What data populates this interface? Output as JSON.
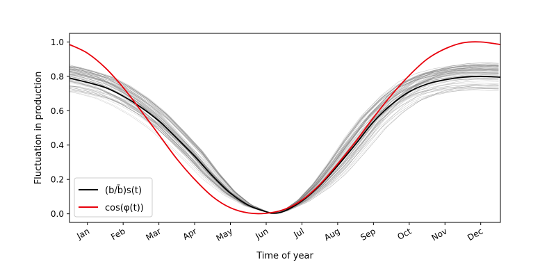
{
  "chart_data": {
    "type": "line",
    "xlabel": "Time of year",
    "ylabel": "Fluctuation in production",
    "x_tick_labels": [
      "Jan",
      "Feb",
      "Mar",
      "Apr",
      "May",
      "Jun",
      "Jul",
      "Aug",
      "Sep",
      "Oct",
      "Nov",
      "Dec"
    ],
    "x_tick_positions": [
      1,
      2,
      3,
      4,
      5,
      6,
      7,
      8,
      9,
      10,
      11,
      12
    ],
    "xlim": [
      0.5,
      12.55
    ],
    "ylim": [
      -0.05,
      1.05
    ],
    "y_ticks": [
      0.0,
      0.2,
      0.4,
      0.6,
      0.8,
      1.0
    ],
    "y_tick_labels": [
      "0.0",
      "0.2",
      "0.4",
      "0.6",
      "0.8",
      "1.0"
    ],
    "grid": false,
    "legend_position": "lower-left",
    "ensemble": {
      "count": 60,
      "color": "#808080",
      "description_min_month": 6.2
    },
    "series": [
      {
        "name": "(b/b̄)s(t)",
        "color": "#000000",
        "x": [
          0.5,
          1,
          1.5,
          2,
          2.5,
          3,
          3.5,
          4,
          4.5,
          5,
          5.5,
          6,
          6.2,
          6.5,
          7,
          7.5,
          8,
          8.5,
          9,
          9.5,
          10,
          10.5,
          11,
          11.5,
          12,
          12.55
        ],
        "y": [
          0.79,
          0.765,
          0.735,
          0.685,
          0.62,
          0.54,
          0.44,
          0.335,
          0.22,
          0.12,
          0.05,
          0.012,
          0.003,
          0.015,
          0.075,
          0.165,
          0.28,
          0.405,
          0.535,
          0.635,
          0.71,
          0.755,
          0.78,
          0.795,
          0.8,
          0.795
        ]
      },
      {
        "name": "cos(φ(t))",
        "color": "#e8000b",
        "x": [
          0.5,
          1,
          1.5,
          2,
          2.5,
          3,
          3.5,
          4,
          4.5,
          5,
          5.5,
          6,
          6.5,
          7,
          7.5,
          8,
          8.5,
          9,
          9.5,
          10,
          10.5,
          11,
          11.5,
          12,
          12.55
        ],
        "y": [
          0.985,
          0.935,
          0.85,
          0.735,
          0.6,
          0.46,
          0.32,
          0.2,
          0.1,
          0.035,
          0.005,
          0.003,
          0.025,
          0.08,
          0.17,
          0.29,
          0.42,
          0.56,
          0.69,
          0.805,
          0.9,
          0.96,
          0.995,
          1.0,
          0.985
        ]
      }
    ]
  }
}
